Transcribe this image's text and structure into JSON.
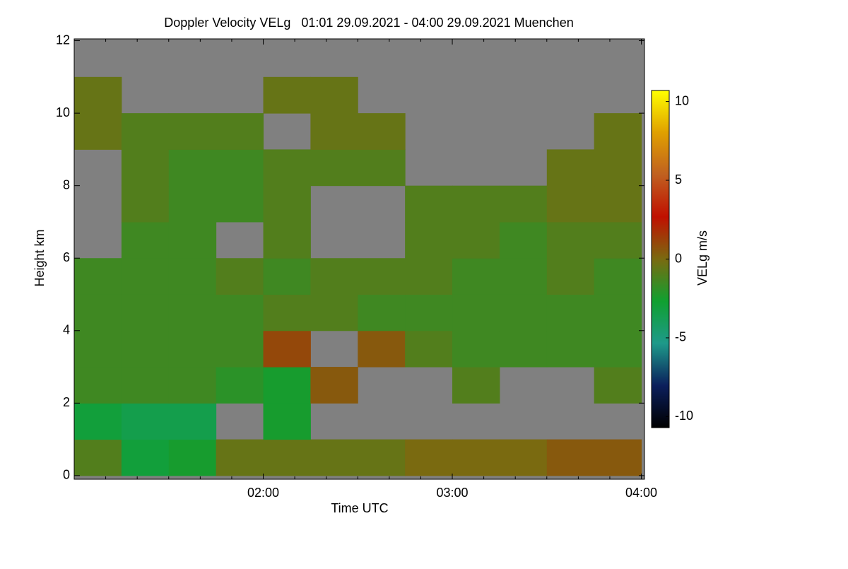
{
  "chart_data": {
    "type": "heatmap",
    "title": "Doppler Velocity VELg   01:01 29.09.2021 - 04:00 29.09.2021 Muenchen",
    "x_label": "Time UTC",
    "y_label": "Height km",
    "colorbar_label": "VELg m/s",
    "xlim": [
      60,
      241
    ],
    "ylim": [
      -0.1,
      12.05
    ],
    "xticks": [
      {
        "value": 120,
        "label": "02:00"
      },
      {
        "value": 180,
        "label": "03:00"
      },
      {
        "value": 240,
        "label": "04:00"
      }
    ],
    "xminorticks": [
      70,
      80,
      90,
      100,
      110,
      130,
      140,
      150,
      160,
      170,
      190,
      200,
      210,
      220,
      230
    ],
    "yticks": [
      0,
      2,
      4,
      6,
      8,
      10,
      12
    ],
    "x_bins": [
      60,
      75,
      90,
      105,
      120,
      135,
      150,
      165,
      180,
      195,
      210,
      225,
      240
    ],
    "y_bins": [
      0,
      1,
      2,
      3,
      4,
      5,
      6,
      7,
      8,
      9,
      10,
      11,
      12
    ],
    "z": [
      [
        -1,
        -3,
        -2.5,
        -0.5,
        -0.5,
        -0.5,
        -0.5,
        0,
        0,
        0,
        0.5,
        0.5
      ],
      [
        -3,
        -3.5,
        -3.5,
        null,
        -2.5,
        null,
        null,
        null,
        null,
        null,
        null,
        null
      ],
      [
        -1.5,
        -1.5,
        -1.5,
        -2,
        -2.5,
        0.5,
        null,
        null,
        -1,
        null,
        null,
        -1
      ],
      [
        -1.5,
        -1.5,
        -1.5,
        -1.5,
        1,
        null,
        0.5,
        -1,
        -1.5,
        -1.5,
        -1.5,
        -1.5
      ],
      [
        -1.5,
        -1.5,
        -1.5,
        -1.5,
        -1,
        -1,
        -1.5,
        -1.5,
        -1.5,
        -1.5,
        -1.5,
        -1.5
      ],
      [
        -1.5,
        -1.5,
        -1.5,
        -1,
        -1.5,
        -1,
        -1,
        -1,
        -1.5,
        -1.5,
        -1,
        -1.5
      ],
      [
        null,
        -1.5,
        -1.5,
        null,
        -1,
        null,
        null,
        -1,
        -1,
        -1.5,
        -1,
        -1
      ],
      [
        null,
        -1,
        -1.5,
        -1.5,
        -1,
        null,
        null,
        -1,
        -1,
        -1,
        -0.5,
        -0.5
      ],
      [
        null,
        -1,
        -1.5,
        -1.5,
        -1,
        -1,
        -1,
        null,
        null,
        null,
        -0.5,
        -0.5
      ],
      [
        -0.5,
        -1,
        -1,
        -1,
        null,
        -0.5,
        -0.5,
        null,
        null,
        null,
        null,
        -0.5
      ],
      [
        -0.5,
        null,
        null,
        null,
        -0.5,
        -0.5,
        null,
        null,
        null,
        null,
        null,
        null
      ],
      [
        null,
        null,
        null,
        null,
        null,
        null,
        null,
        null,
        null,
        null,
        null,
        null
      ]
    ],
    "clim": [
      -10.7,
      10.7
    ],
    "cticks": [
      -10,
      -5,
      0,
      5,
      10
    ],
    "colormap": [
      "#000000",
      "#0b1f5c",
      "#1e9a8a",
      "#10a030",
      "#7a6a10",
      "#c01000",
      "#c06020",
      "#e0a000",
      "#ffff00"
    ],
    "nodata_color": "#808080"
  }
}
